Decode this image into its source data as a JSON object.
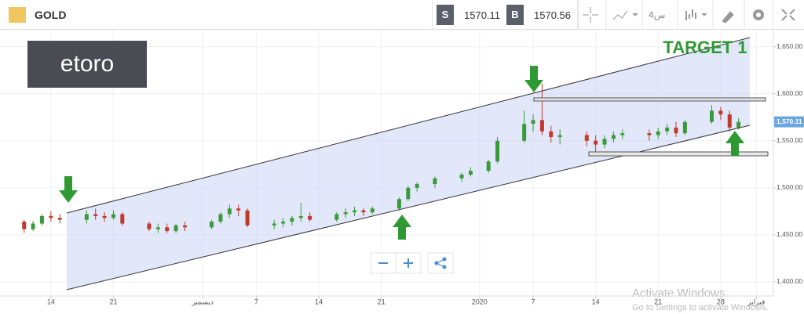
{
  "header": {
    "symbol": "GOLD",
    "sell_label": "S",
    "sell_price": "1570.11",
    "buy_label": "B",
    "buy_price": "1570.56",
    "timeframe": "4س"
  },
  "logo": "etoro",
  "chart_data": {
    "type": "candlestick",
    "annotations": [
      "TARGET 1"
    ],
    "x": [
      -6,
      -3,
      -2,
      -1,
      0,
      1,
      4,
      5,
      6,
      7,
      8,
      11,
      12,
      13,
      14,
      15,
      18,
      19,
      20,
      21,
      22,
      25,
      26,
      27,
      28,
      29,
      32,
      33,
      34,
      35,
      36,
      39,
      40,
      41,
      43,
      46,
      47,
      49,
      50,
      53,
      54,
      55,
      56,
      57,
      60,
      61,
      62,
      63,
      64,
      67,
      68,
      69,
      70,
      71,
      74,
      75,
      76,
      77
    ],
    "open": [
      1462,
      1464,
      1456,
      1462,
      1470,
      1468,
      1466,
      1472,
      1470,
      1468,
      1472,
      1462,
      1456,
      1458,
      1454,
      1460,
      1458,
      1464,
      1472,
      1478,
      1476,
      1460,
      1462,
      1464,
      1468,
      1470,
      1466,
      1472,
      1474,
      1476,
      1474,
      1478,
      1488,
      1500,
      1504,
      1510,
      1514,
      1518,
      1528,
      1550,
      1568,
      1572,
      1560,
      1554,
      1556,
      1550,
      1546,
      1552,
      1556,
      1558,
      1556,
      1560,
      1564,
      1558,
      1570,
      1582,
      1578,
      1564
    ],
    "high": [
      1468,
      1466,
      1465,
      1472,
      1475,
      1472,
      1476,
      1478,
      1474,
      1476,
      1474,
      1464,
      1462,
      1462,
      1462,
      1464,
      1466,
      1474,
      1482,
      1482,
      1478,
      1466,
      1468,
      1470,
      1484,
      1474,
      1474,
      1478,
      1480,
      1478,
      1480,
      1490,
      1502,
      1506,
      1512,
      1516,
      1522,
      1530,
      1554,
      1582,
      1578,
      1611,
      1566,
      1562,
      1560,
      1556,
      1556,
      1560,
      1562,
      1562,
      1564,
      1568,
      1570,
      1572,
      1588,
      1586,
      1582,
      1574
    ],
    "low": [
      1458,
      1452,
      1454,
      1460,
      1464,
      1462,
      1462,
      1466,
      1464,
      1466,
      1460,
      1454,
      1452,
      1452,
      1452,
      1454,
      1456,
      1462,
      1468,
      1470,
      1458,
      1456,
      1458,
      1460,
      1464,
      1464,
      1464,
      1468,
      1470,
      1470,
      1472,
      1476,
      1486,
      1496,
      1500,
      1506,
      1512,
      1516,
      1526,
      1548,
      1560,
      1556,
      1548,
      1546,
      1544,
      1538,
      1542,
      1548,
      1552,
      1550,
      1552,
      1556,
      1554,
      1556,
      1568,
      1572,
      1560,
      1562
    ],
    "close": [
      1464,
      1456,
      1462,
      1470,
      1468,
      1466,
      1472,
      1470,
      1468,
      1472,
      1462,
      1456,
      1458,
      1454,
      1460,
      1458,
      1464,
      1472,
      1478,
      1476,
      1460,
      1462,
      1464,
      1468,
      1470,
      1466,
      1472,
      1474,
      1476,
      1474,
      1478,
      1488,
      1500,
      1504,
      1510,
      1514,
      1518,
      1528,
      1550,
      1568,
      1572,
      1560,
      1554,
      1556,
      1550,
      1546,
      1552,
      1556,
      1558,
      1556,
      1560,
      1564,
      1558,
      1570,
      1582,
      1578,
      1564,
      1570.11
    ],
    "up_color": "#3a9a3a",
    "down_color": "#c0392b",
    "xlim": [
      -5.7,
      80.9
    ],
    "xticks": [
      {
        "value": 0,
        "label": "14"
      },
      {
        "value": 7,
        "label": "21"
      },
      {
        "value": 17,
        "label": "ديسمبر"
      },
      {
        "value": 23,
        "label": "7"
      },
      {
        "value": 30,
        "label": "14"
      },
      {
        "value": 37,
        "label": "21"
      },
      {
        "value": 48,
        "label": "2020"
      },
      {
        "value": 54,
        "label": "7"
      },
      {
        "value": 61,
        "label": "14"
      },
      {
        "value": 68,
        "label": "21"
      },
      {
        "value": 75,
        "label": "28"
      },
      {
        "value": 79,
        "label": "فبراير"
      }
    ],
    "ylim": [
      1385,
      1668
    ],
    "yticks": [
      {
        "value": 1400,
        "label": "1,400.00"
      },
      {
        "value": 1450,
        "label": "1,450.00"
      },
      {
        "value": 1500,
        "label": "1,500.00"
      },
      {
        "value": 1550,
        "label": "1,550.00"
      },
      {
        "value": 1600,
        "label": "1,600.00"
      },
      {
        "value": 1650,
        "label": "1,650.00"
      }
    ],
    "last_price": {
      "value": 1570.11,
      "label": "1,570.11"
    },
    "grid": true
  },
  "watermark": {
    "title": "Activate Windows",
    "subtitle": "Go to Settings to activate Windows."
  }
}
